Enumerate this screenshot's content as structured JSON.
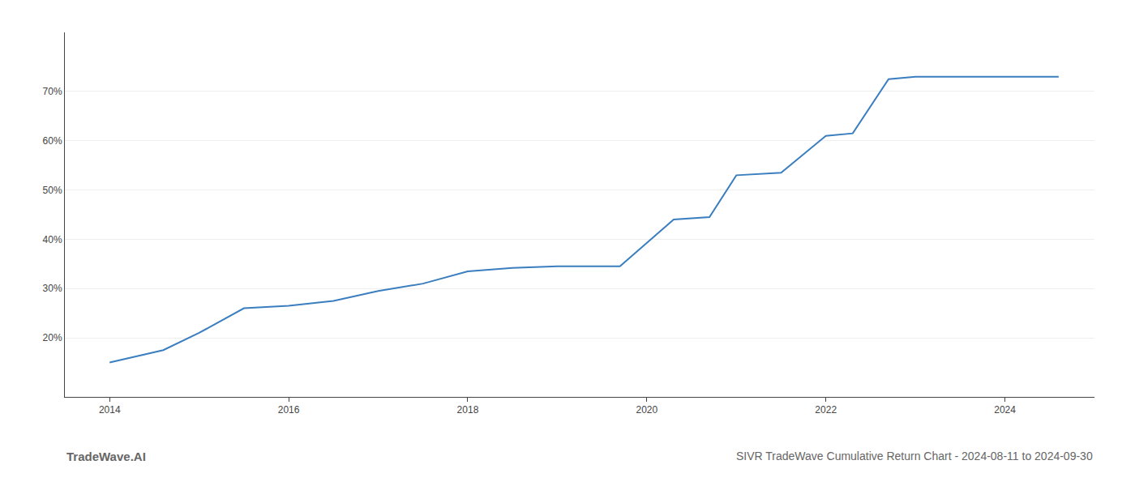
{
  "chart_data": {
    "type": "line",
    "title": "SIVR TradeWave Cumulative Return Chart - 2024-08-11 to 2024-09-30",
    "annotations": [
      "TradeWave.AI"
    ],
    "x": [
      2014.0,
      2014.6,
      2015.0,
      2015.5,
      2016.0,
      2016.5,
      2017.0,
      2017.5,
      2018.0,
      2018.5,
      2019.0,
      2019.3,
      2019.5,
      2019.7,
      2020.3,
      2020.7,
      2021.0,
      2021.5,
      2022.0,
      2022.3,
      2022.7,
      2023.0,
      2023.2,
      2024.0,
      2024.6
    ],
    "values": [
      15.0,
      17.5,
      21.0,
      26.0,
      26.5,
      27.5,
      29.5,
      31.0,
      33.5,
      34.2,
      34.5,
      34.5,
      34.5,
      34.5,
      44.0,
      44.5,
      53.0,
      53.5,
      61.0,
      61.5,
      72.5,
      73.0,
      73.0,
      73.0,
      73.0
    ],
    "color": "#3a7ebf",
    "xlim": [
      2013.5,
      2025.0
    ],
    "ylim": [
      8,
      82
    ],
    "xticks": [
      2014,
      2016,
      2018,
      2020,
      2022,
      2024
    ],
    "yticks": [
      {
        "value": 20,
        "label": "20%"
      },
      {
        "value": 30,
        "label": "30%"
      },
      {
        "value": 40,
        "label": "40%"
      },
      {
        "value": 50,
        "label": "50%"
      },
      {
        "value": 60,
        "label": "60%"
      },
      {
        "value": 70,
        "label": "70%"
      }
    ],
    "grid": "y"
  }
}
